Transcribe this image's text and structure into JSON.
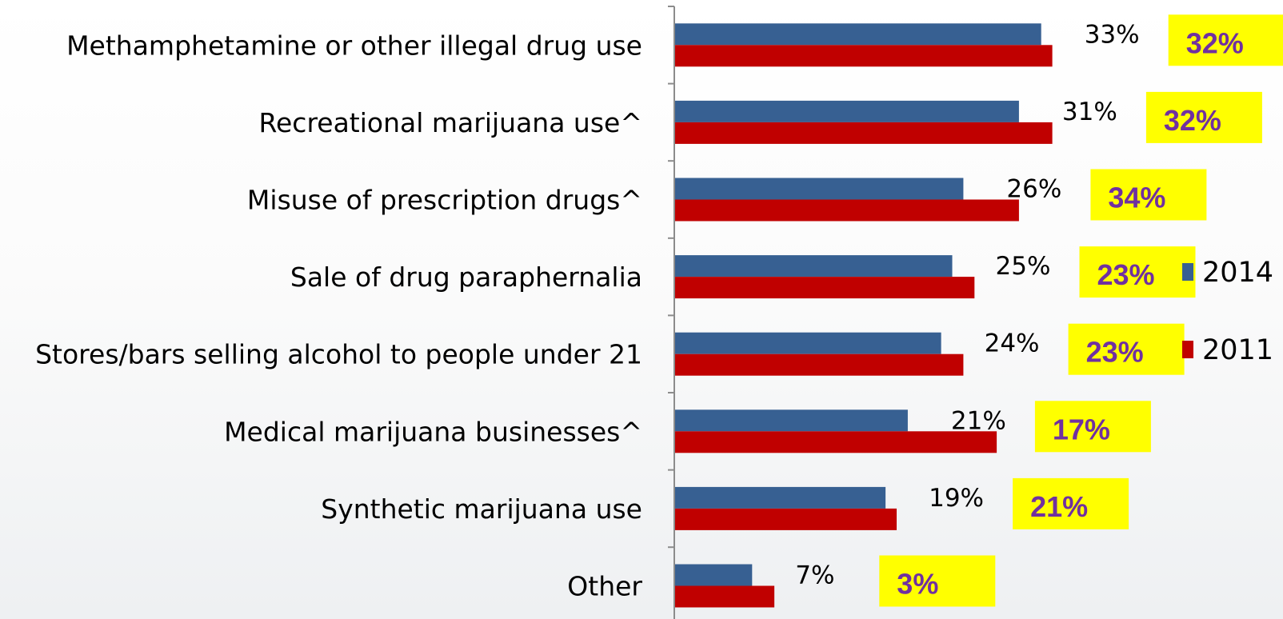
{
  "chart_data": {
    "type": "bar",
    "orientation": "horizontal",
    "categories": [
      "Methamphetamine or other illegal drug use",
      "Recreational marijuana use^",
      "Misuse of prescription drugs^",
      "Sale of drug paraphernalia",
      "Stores/bars selling alcohol to people under 21",
      "Medical marijuana businesses^",
      "Synthetic marijuana use",
      "Other"
    ],
    "series": [
      {
        "name": "2014",
        "color": "#376092",
        "values": [
          33,
          31,
          26,
          25,
          24,
          21,
          19,
          7
        ],
        "labels": [
          "33%",
          "31%",
          "26%",
          "25%",
          "24%",
          "21%",
          "19%",
          "7%"
        ]
      },
      {
        "name": "2011",
        "color": "#c00000",
        "values": [
          34,
          34,
          31,
          27,
          26,
          29,
          20,
          9
        ],
        "highlight_labels": [
          "32%",
          "32%",
          "34%",
          "23%",
          "23%",
          "17%",
          "21%",
          "3%"
        ]
      }
    ],
    "highlight_style": {
      "background": "#ffff00",
      "text_color": "#7030a0"
    },
    "legend": {
      "position": "right",
      "entries": [
        "2014",
        "2011"
      ]
    },
    "grid": false,
    "xlim": [
      0,
      40
    ]
  }
}
